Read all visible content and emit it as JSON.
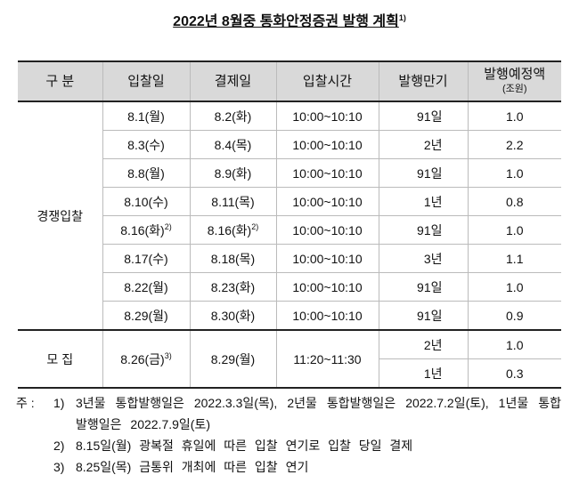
{
  "title": {
    "text": "2022년 8월중 통화안정증권 발행 계획",
    "note": "1)"
  },
  "table": {
    "headers": [
      "구 분",
      "입찰일",
      "결제일",
      "입찰시간",
      "발행만기",
      "발행예정액"
    ],
    "header_unit": "(조원)",
    "groups": [
      {
        "label": "경쟁입찰",
        "rows": [
          {
            "auction_date": "8.1(월)",
            "settlement_date": "8.2(화)",
            "time": "10:00~10:10",
            "maturities": [
              "91일"
            ],
            "amounts": [
              "1.0"
            ]
          },
          {
            "auction_date": "8.3(수)",
            "settlement_date": "8.4(목)",
            "time": "10:00~10:10",
            "maturities": [
              "2년"
            ],
            "amounts": [
              "2.2"
            ]
          },
          {
            "auction_date": "8.8(월)",
            "settlement_date": "8.9(화)",
            "time": "10:00~10:10",
            "maturities": [
              "91일"
            ],
            "amounts": [
              "1.0"
            ]
          },
          {
            "auction_date": "8.10(수)",
            "settlement_date": "8.11(목)",
            "time": "10:00~10:10",
            "maturities": [
              "1년"
            ],
            "amounts": [
              "0.8"
            ]
          },
          {
            "auction_date": "8.16(화)",
            "auction_note": "2)",
            "settlement_date": "8.16(화)",
            "settlement_note": "2)",
            "time": "10:00~10:10",
            "maturities": [
              "91일"
            ],
            "amounts": [
              "1.0"
            ]
          },
          {
            "auction_date": "8.17(수)",
            "settlement_date": "8.18(목)",
            "time": "10:00~10:10",
            "maturities": [
              "3년"
            ],
            "amounts": [
              "1.1"
            ]
          },
          {
            "auction_date": "8.22(월)",
            "settlement_date": "8.23(화)",
            "time": "10:00~10:10",
            "maturities": [
              "91일"
            ],
            "amounts": [
              "1.0"
            ]
          },
          {
            "auction_date": "8.29(월)",
            "settlement_date": "8.30(화)",
            "time": "10:00~10:10",
            "maturities": [
              "91일"
            ],
            "amounts": [
              "0.9"
            ]
          }
        ]
      },
      {
        "label": "모 집",
        "rows": [
          {
            "auction_date": "8.26(금)",
            "auction_note": "3)",
            "settlement_date": "8.29(월)",
            "time": "11:20~11:30",
            "maturities": [
              "2년",
              "1년"
            ],
            "amounts": [
              "1.0",
              "0.3"
            ]
          }
        ]
      }
    ]
  },
  "footnotes": {
    "prefix": "주 :",
    "items": [
      {
        "mark": "1)",
        "text": "3년물 통합발행일은 2022.3.3일(목), 2년물 통합발행일은 2022.7.2일(토), 1년물 통합발행일은 2022.7.9일(토)"
      },
      {
        "mark": "2)",
        "text": "8.15일(월) 광복절 휴일에 따른 입찰 연기로 입찰 당일 결제"
      },
      {
        "mark": "3)",
        "text": "8.25일(목) 금통위 개최에 따른 입찰 연기"
      }
    ]
  }
}
